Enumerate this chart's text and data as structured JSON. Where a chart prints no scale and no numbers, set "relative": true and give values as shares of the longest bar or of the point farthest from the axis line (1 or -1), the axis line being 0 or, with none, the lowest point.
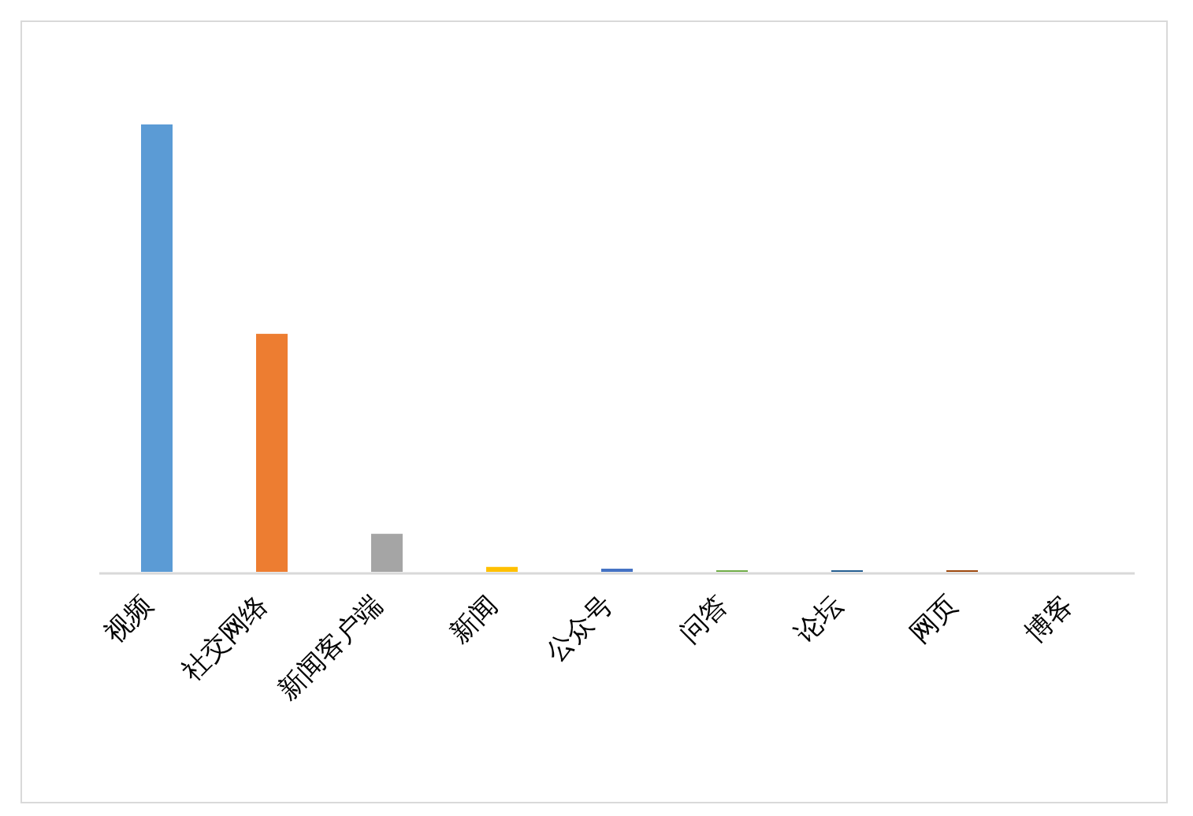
{
  "chart_data": {
    "type": "bar",
    "relative": true,
    "categories": [
      "视频",
      "社交网络",
      "新闻客户端",
      "新闻",
      "公众号",
      "问答",
      "论坛",
      "网页",
      "博客"
    ],
    "values": [
      1,
      0.532,
      0.085,
      0.011,
      0.007,
      0.0035,
      0.0035,
      0.0035,
      0
    ],
    "colors": [
      "#5b9bd5",
      "#ed7d31",
      "#a5a5a5",
      "#ffc000",
      "#4472c4",
      "#70ad47",
      "#255e91",
      "#9e480e",
      "#636363"
    ]
  }
}
